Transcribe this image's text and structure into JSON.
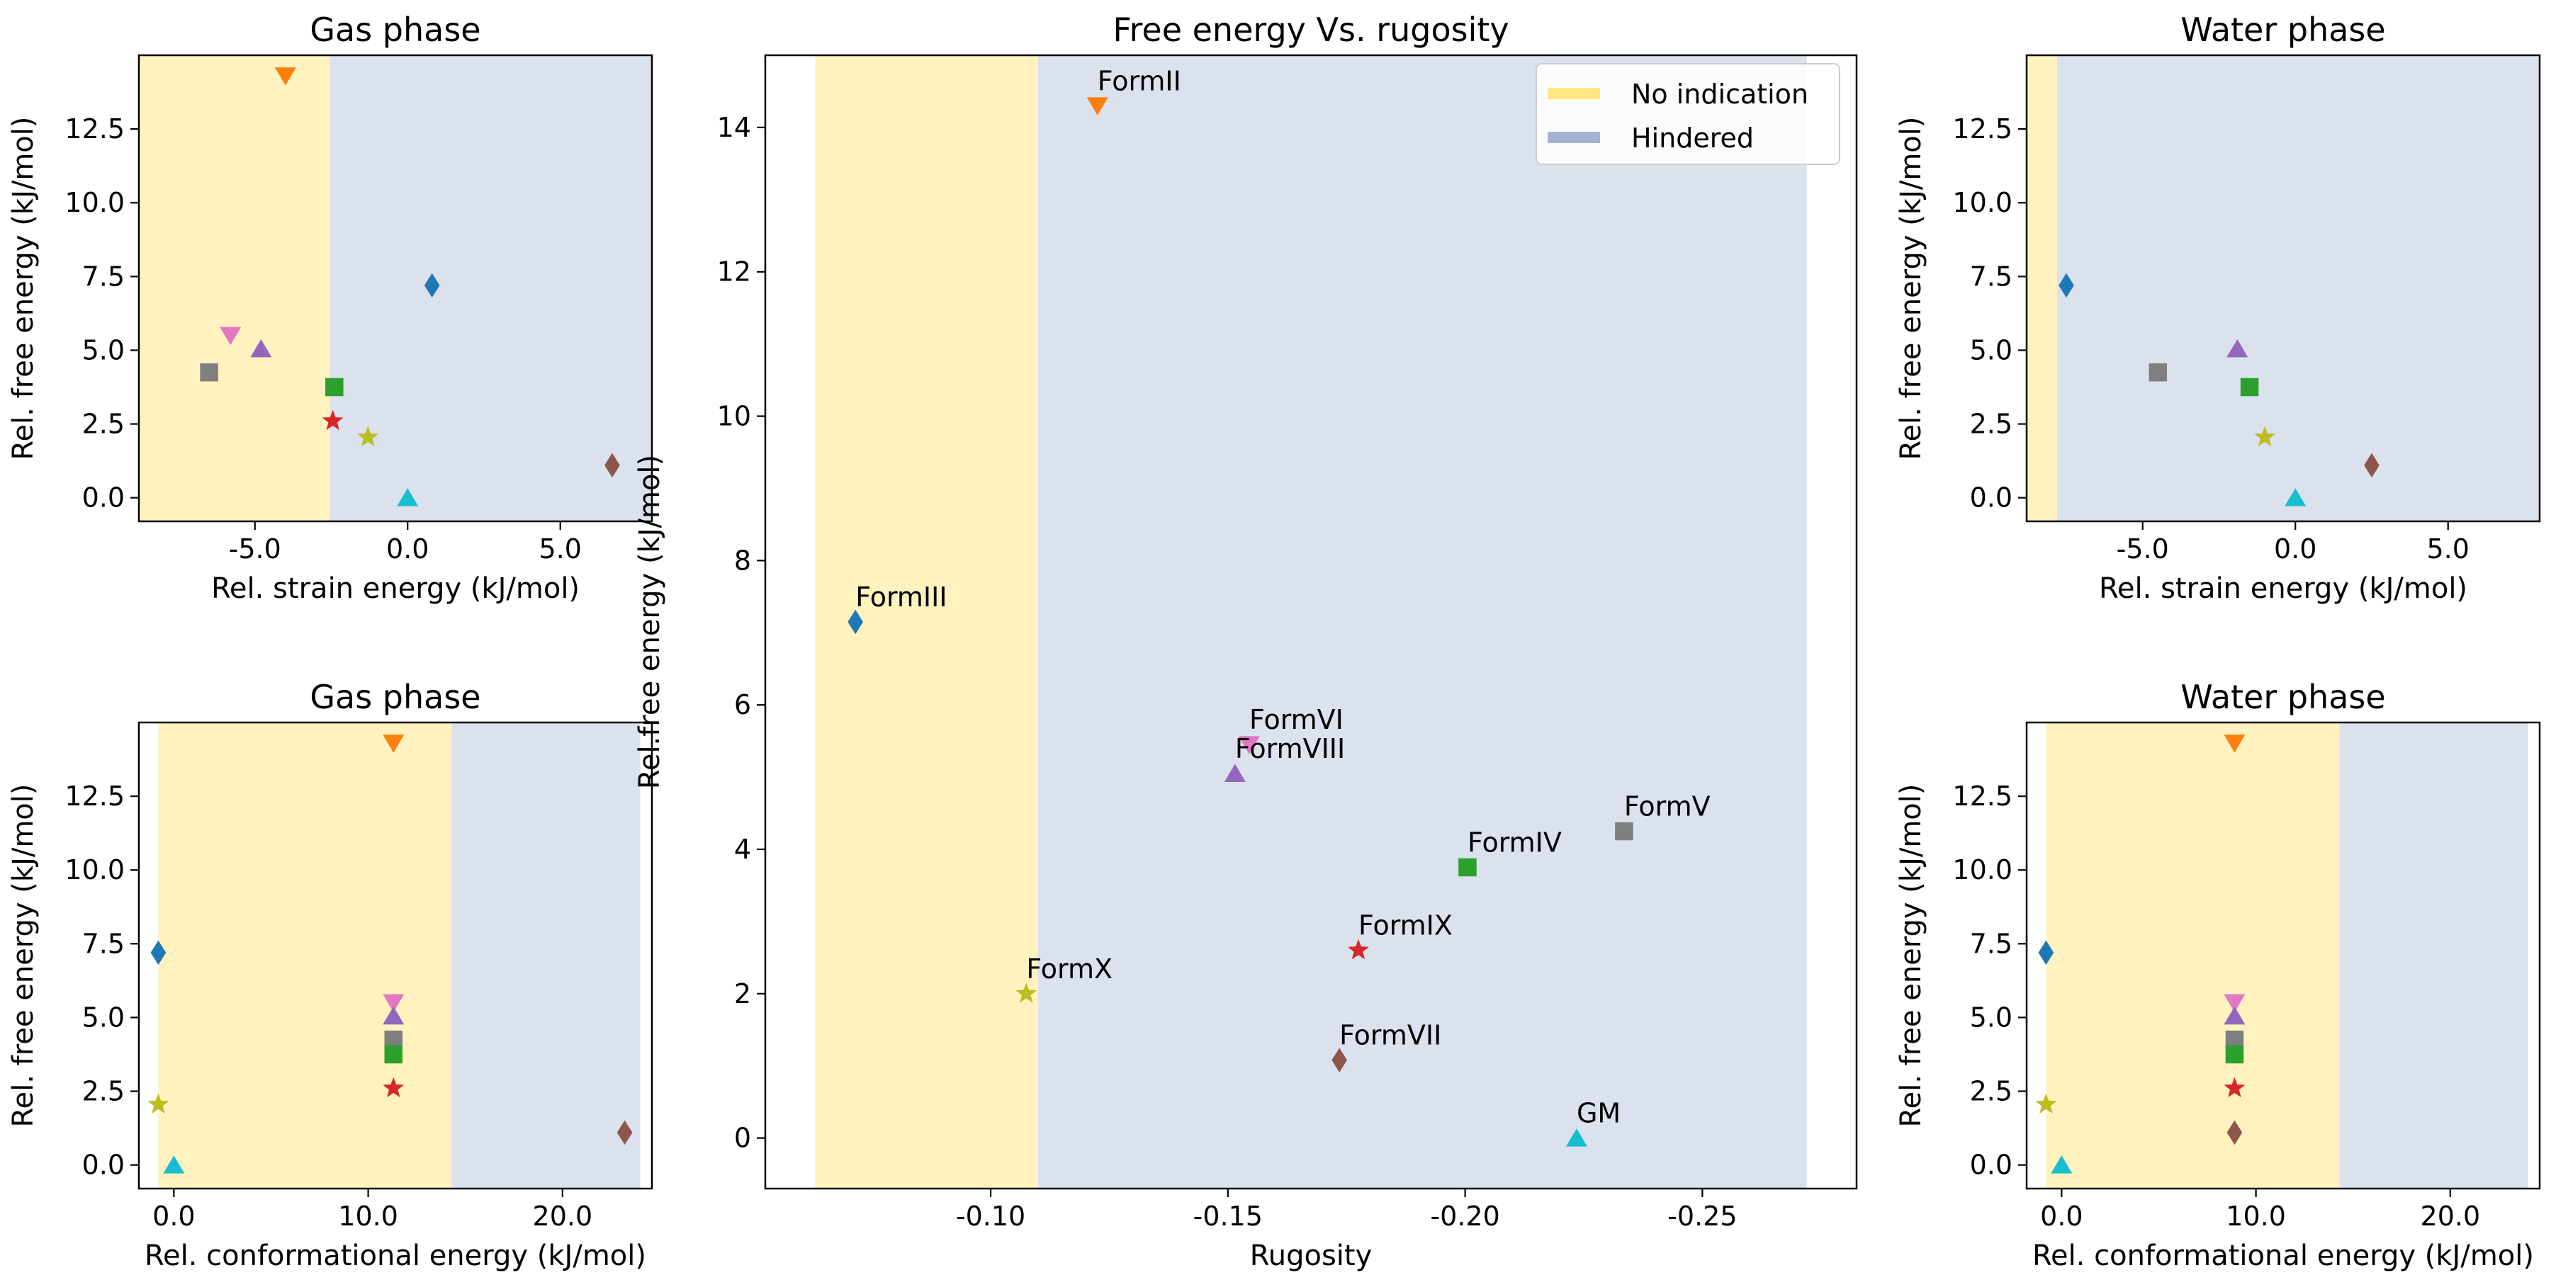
{
  "colors": {
    "formII": "#ff7f0e",
    "formIII": "#1f77b4",
    "formIV": "#2ca02c",
    "formV": "#7f7f7f",
    "formVI": "#e377c2",
    "formVII": "#8c564b",
    "formVIII": "#9467bd",
    "formIX": "#d62728",
    "formX": "#bcbd22",
    "GM": "#17becf",
    "no_indication": "#ffe680",
    "hindered": "#a5b3d3"
  },
  "legend": {
    "placement": "top-right",
    "entries": [
      {
        "label": "No indication",
        "color": "#ffe680"
      },
      {
        "label": "Hindered",
        "color": "#a5b3d3"
      }
    ]
  },
  "chart_data": [
    {
      "id": "gas-strain",
      "type": "scatter",
      "title": "Gas phase",
      "xlabel": "Rel. strain energy (kJ/mol)",
      "ylabel": "Rel. free energy (kJ/mol)",
      "xlim": [
        -8.8,
        8.0
      ],
      "ylim": [
        -0.8,
        15.0
      ],
      "xticks": [
        -5.0,
        0.0,
        5.0
      ],
      "xtick_labels": [
        "-5.0",
        "0.0",
        "5.0"
      ],
      "yticks": [
        0.0,
        2.5,
        5.0,
        7.5,
        10.0,
        12.5
      ],
      "ytick_labels": [
        "0.0",
        "2.5",
        "5.0",
        "7.5",
        "10.0",
        "12.5"
      ],
      "regions": [
        {
          "from": -8.8,
          "to": -2.55,
          "kind": "no_indication"
        },
        {
          "from": -2.55,
          "to": 8.0,
          "kind": "hindered"
        }
      ],
      "points": [
        {
          "x": -4.0,
          "y": 14.3,
          "marker": "tri-down",
          "color": "#ff7f0e"
        },
        {
          "x": 0.8,
          "y": 7.2,
          "marker": "diamond",
          "color": "#1f77b4"
        },
        {
          "x": -5.8,
          "y": 5.5,
          "marker": "tri-down",
          "color": "#e377c2"
        },
        {
          "x": -4.8,
          "y": 5.05,
          "marker": "tri-up",
          "color": "#9467bd"
        },
        {
          "x": -6.5,
          "y": 4.25,
          "marker": "square",
          "color": "#7f7f7f"
        },
        {
          "x": -2.4,
          "y": 3.75,
          "marker": "square",
          "color": "#2ca02c"
        },
        {
          "x": -2.45,
          "y": 2.6,
          "marker": "star",
          "color": "#d62728"
        },
        {
          "x": -1.3,
          "y": 2.05,
          "marker": "star",
          "color": "#bcbd22"
        },
        {
          "x": 0.0,
          "y": 0.0,
          "marker": "tri-up",
          "color": "#17becf"
        },
        {
          "x": 6.7,
          "y": 1.1,
          "marker": "diamond",
          "color": "#8c564b"
        }
      ]
    },
    {
      "id": "gas-conf",
      "type": "scatter",
      "title": "Gas phase",
      "xlabel": "Rel. conformational energy (kJ/mol)",
      "ylabel": "Rel. free energy (kJ/mol)",
      "xlim": [
        -1.8,
        24.6
      ],
      "ylim": [
        -0.8,
        15.0
      ],
      "xticks": [
        0.0,
        10.0,
        20.0
      ],
      "xtick_labels": [
        "0.0",
        "10.0",
        "20.0"
      ],
      "yticks": [
        0.0,
        2.5,
        5.0,
        7.5,
        10.0,
        12.5
      ],
      "ytick_labels": [
        "0.0",
        "2.5",
        "5.0",
        "7.5",
        "10.0",
        "12.5"
      ],
      "regions": [
        {
          "from": -0.8,
          "to": 14.3,
          "kind": "no_indication"
        },
        {
          "from": 14.3,
          "to": 24.0,
          "kind": "hindered"
        }
      ],
      "points": [
        {
          "x": 11.3,
          "y": 14.3,
          "marker": "tri-down",
          "color": "#ff7f0e"
        },
        {
          "x": -0.8,
          "y": 7.2,
          "marker": "diamond",
          "color": "#1f77b4"
        },
        {
          "x": 11.3,
          "y": 5.5,
          "marker": "tri-down",
          "color": "#e377c2"
        },
        {
          "x": 11.3,
          "y": 5.05,
          "marker": "tri-up",
          "color": "#9467bd"
        },
        {
          "x": 11.3,
          "y": 4.25,
          "marker": "square",
          "color": "#7f7f7f"
        },
        {
          "x": 11.3,
          "y": 3.75,
          "marker": "square",
          "color": "#2ca02c"
        },
        {
          "x": 11.3,
          "y": 2.6,
          "marker": "star",
          "color": "#d62728"
        },
        {
          "x": -0.8,
          "y": 2.05,
          "marker": "star",
          "color": "#bcbd22"
        },
        {
          "x": 0.0,
          "y": 0.0,
          "marker": "tri-up",
          "color": "#17becf"
        },
        {
          "x": 23.2,
          "y": 1.1,
          "marker": "diamond",
          "color": "#8c564b"
        }
      ]
    },
    {
      "id": "rugosity",
      "type": "scatter",
      "title": "Free energy Vs. rugosity",
      "xlabel": "Rugosity",
      "ylabel": "Rel.free energy (kJ/mol)",
      "xlim": [
        -0.0525,
        -0.2825
      ],
      "ylim": [
        -0.7,
        15.0
      ],
      "xticks": [
        -0.1,
        -0.15,
        -0.2,
        -0.25
      ],
      "xtick_labels": [
        "-0.10",
        "-0.15",
        "-0.20",
        "-0.25"
      ],
      "yticks": [
        0,
        2,
        4,
        6,
        8,
        10,
        12,
        14
      ],
      "ytick_labels": [
        "0",
        "2",
        "4",
        "6",
        "8",
        "10",
        "12",
        "14"
      ],
      "regions": [
        {
          "from": -0.063,
          "to": -0.11,
          "kind": "no_indication"
        },
        {
          "from": -0.11,
          "to": -0.272,
          "kind": "hindered"
        }
      ],
      "points": [
        {
          "x": -0.1225,
          "y": 14.3,
          "marker": "tri-down",
          "color": "#ff7f0e",
          "label": "FormII"
        },
        {
          "x": -0.0715,
          "y": 7.15,
          "marker": "diamond",
          "color": "#1f77b4",
          "label": "FormIII"
        },
        {
          "x": -0.1545,
          "y": 5.45,
          "marker": "tri-down",
          "color": "#e377c2",
          "label": "FormVI"
        },
        {
          "x": -0.1515,
          "y": 5.05,
          "marker": "tri-up",
          "color": "#9467bd",
          "label": "FormVIII"
        },
        {
          "x": -0.2335,
          "y": 4.25,
          "marker": "square",
          "color": "#7f7f7f",
          "label": "FormV"
        },
        {
          "x": -0.2005,
          "y": 3.75,
          "marker": "square",
          "color": "#2ca02c",
          "label": "FormIV"
        },
        {
          "x": -0.1775,
          "y": 2.6,
          "marker": "star",
          "color": "#d62728",
          "label": "FormIX"
        },
        {
          "x": -0.1075,
          "y": 2.0,
          "marker": "star",
          "color": "#bcbd22",
          "label": "FormX"
        },
        {
          "x": -0.1735,
          "y": 1.08,
          "marker": "diamond",
          "color": "#8c564b",
          "label": "FormVII"
        },
        {
          "x": -0.2235,
          "y": 0.0,
          "marker": "tri-up",
          "color": "#17becf",
          "label": "GM"
        }
      ]
    },
    {
      "id": "water-strain",
      "type": "scatter",
      "title": "Water phase",
      "xlabel": "Rel. strain energy (kJ/mol)",
      "ylabel": "Rel. free energy (kJ/mol)",
      "xlim": [
        -8.8,
        8.0
      ],
      "ylim": [
        -0.8,
        15.0
      ],
      "xticks": [
        -5.0,
        0.0,
        5.0
      ],
      "xtick_labels": [
        "-5.0",
        "0.0",
        "5.0"
      ],
      "yticks": [
        0.0,
        2.5,
        5.0,
        7.5,
        10.0,
        12.5
      ],
      "ytick_labels": [
        "0.0",
        "2.5",
        "5.0",
        "7.5",
        "10.0",
        "12.5"
      ],
      "regions": [
        {
          "from": -8.8,
          "to": -7.8,
          "kind": "no_indication"
        },
        {
          "from": -7.8,
          "to": 8.0,
          "kind": "hindered"
        }
      ],
      "points": [
        {
          "x": -7.5,
          "y": 7.2,
          "marker": "diamond",
          "color": "#1f77b4"
        },
        {
          "x": -1.9,
          "y": 5.05,
          "marker": "tri-up",
          "color": "#9467bd"
        },
        {
          "x": -4.5,
          "y": 4.25,
          "marker": "square",
          "color": "#7f7f7f"
        },
        {
          "x": -1.5,
          "y": 3.75,
          "marker": "square",
          "color": "#2ca02c"
        },
        {
          "x": -1.0,
          "y": 2.05,
          "marker": "star",
          "color": "#bcbd22"
        },
        {
          "x": 0.0,
          "y": 0.0,
          "marker": "tri-up",
          "color": "#17becf"
        },
        {
          "x": 2.5,
          "y": 1.1,
          "marker": "diamond",
          "color": "#8c564b"
        }
      ]
    },
    {
      "id": "water-conf",
      "type": "scatter",
      "title": "Water phase",
      "xlabel": "Rel. conformational energy (kJ/mol)",
      "ylabel": "Rel. free energy (kJ/mol)",
      "xlim": [
        -1.8,
        24.6
      ],
      "ylim": [
        -0.8,
        15.0
      ],
      "xticks": [
        0.0,
        10.0,
        20.0
      ],
      "xtick_labels": [
        "0.0",
        "10.0",
        "20.0"
      ],
      "yticks": [
        0.0,
        2.5,
        5.0,
        7.5,
        10.0,
        12.5
      ],
      "ytick_labels": [
        "0.0",
        "2.5",
        "5.0",
        "7.5",
        "10.0",
        "12.5"
      ],
      "regions": [
        {
          "from": -0.8,
          "to": 14.3,
          "kind": "no_indication"
        },
        {
          "from": 14.3,
          "to": 24.0,
          "kind": "hindered"
        }
      ],
      "points": [
        {
          "x": 8.9,
          "y": 14.3,
          "marker": "tri-down",
          "color": "#ff7f0e"
        },
        {
          "x": -0.8,
          "y": 7.2,
          "marker": "diamond",
          "color": "#1f77b4"
        },
        {
          "x": 8.9,
          "y": 5.5,
          "marker": "tri-down",
          "color": "#e377c2"
        },
        {
          "x": 8.9,
          "y": 5.05,
          "marker": "tri-up",
          "color": "#9467bd"
        },
        {
          "x": 8.9,
          "y": 4.25,
          "marker": "square",
          "color": "#7f7f7f"
        },
        {
          "x": 8.9,
          "y": 3.75,
          "marker": "square",
          "color": "#2ca02c"
        },
        {
          "x": 8.9,
          "y": 2.6,
          "marker": "star",
          "color": "#d62728"
        },
        {
          "x": -0.8,
          "y": 2.05,
          "marker": "star",
          "color": "#bcbd22"
        },
        {
          "x": 0.0,
          "y": 0.0,
          "marker": "tri-up",
          "color": "#17becf"
        },
        {
          "x": 8.9,
          "y": 1.1,
          "marker": "diamond",
          "color": "#8c564b"
        }
      ]
    }
  ]
}
